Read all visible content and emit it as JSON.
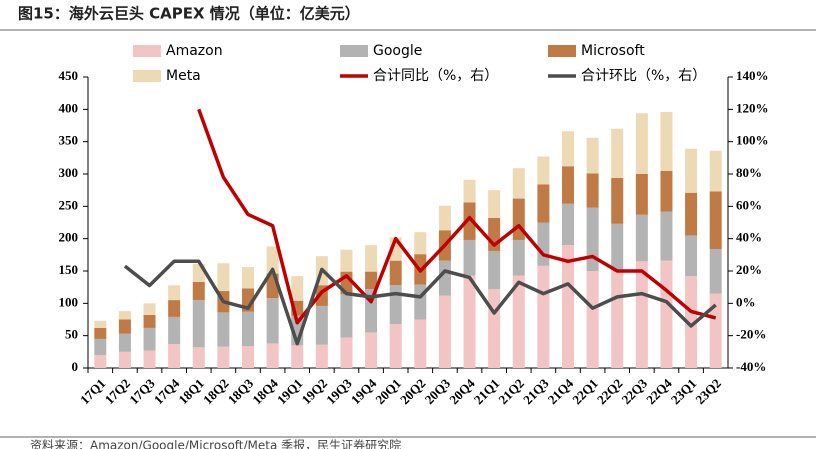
{
  "chart_data": {
    "type": "bar",
    "title": "图15：海外云巨头 CAPEX 情况（单位：亿美元）",
    "source": "资料来源：Amazon/Google/Microsoft/Meta 季报，民生证券研究院",
    "categories": [
      "17Q1",
      "17Q2",
      "17Q3",
      "17Q4",
      "18Q1",
      "18Q2",
      "18Q3",
      "18Q4",
      "19Q1",
      "19Q2",
      "19Q3",
      "19Q4",
      "20Q1",
      "20Q2",
      "20Q3",
      "20Q4",
      "21Q1",
      "21Q2",
      "21Q3",
      "21Q4",
      "22Q1",
      "22Q2",
      "22Q3",
      "22Q4",
      "23Q1",
      "23Q2"
    ],
    "series": [
      {
        "name": "Amazon",
        "color": "#f2c4c4",
        "values": [
          20,
          25,
          27,
          37,
          32,
          33,
          34,
          38,
          35,
          36,
          47,
          55,
          68,
          75,
          112,
          143,
          122,
          143,
          158,
          190,
          150,
          153,
          165,
          166,
          142,
          115
        ]
      },
      {
        "name": "Google",
        "color": "#b3b3b3",
        "values": [
          25,
          28,
          35,
          42,
          73,
          53,
          53,
          70,
          46,
          60,
          67,
          67,
          60,
          54,
          54,
          55,
          59,
          55,
          67,
          64,
          98,
          70,
          72,
          76,
          63,
          69
        ]
      },
      {
        "name": "Microsoft",
        "color": "#c07a45",
        "values": [
          17,
          22,
          20,
          26,
          28,
          33,
          36,
          38,
          23,
          32,
          35,
          27,
          38,
          47,
          47,
          58,
          51,
          64,
          59,
          58,
          53,
          71,
          63,
          63,
          66,
          89
        ]
      },
      {
        "name": "Meta",
        "color": "#eed9b5",
        "values": [
          11,
          13,
          18,
          23,
          28,
          43,
          33,
          42,
          38,
          45,
          34,
          41,
          36,
          34,
          38,
          35,
          43,
          47,
          43,
          54,
          55,
          76,
          94,
          91,
          68,
          63
        ]
      },
      {
        "name": "合计同比（%，右）",
        "color": "#c00000",
        "type": "line",
        "axis": "y2",
        "values": [
          null,
          null,
          null,
          null,
          120,
          78,
          55,
          48,
          -12,
          7,
          17,
          1,
          40,
          20,
          36,
          53,
          36,
          48,
          30,
          26,
          29,
          20,
          20,
          8,
          -5,
          -9
        ]
      },
      {
        "name": "合计环比（%，右）",
        "color": "#4d4d4d",
        "type": "line",
        "axis": "y2",
        "values": [
          null,
          23,
          11,
          26,
          26,
          1,
          -3,
          21,
          -25,
          21,
          6,
          4,
          6,
          4,
          20,
          16,
          -6,
          13,
          6,
          12,
          -3,
          4,
          6,
          1,
          -14,
          -1
        ]
      }
    ],
    "ylim": [
      0,
      450
    ],
    "yticks": [
      0,
      50,
      100,
      150,
      200,
      250,
      300,
      350,
      400,
      450
    ],
    "y2lim": [
      -40,
      140
    ],
    "y2ticks": [
      {
        "value": -40,
        "label": "-40%"
      },
      {
        "value": -20,
        "label": "-20%"
      },
      {
        "value": 0,
        "label": "0%"
      },
      {
        "value": 20,
        "label": "20%"
      },
      {
        "value": 40,
        "label": "40%"
      },
      {
        "value": 60,
        "label": "60%"
      },
      {
        "value": 80,
        "label": "80%"
      },
      {
        "value": 100,
        "label": "100%"
      },
      {
        "value": 120,
        "label": "120%"
      },
      {
        "value": 140,
        "label": "140%"
      }
    ],
    "stacked": true,
    "grid": false
  }
}
